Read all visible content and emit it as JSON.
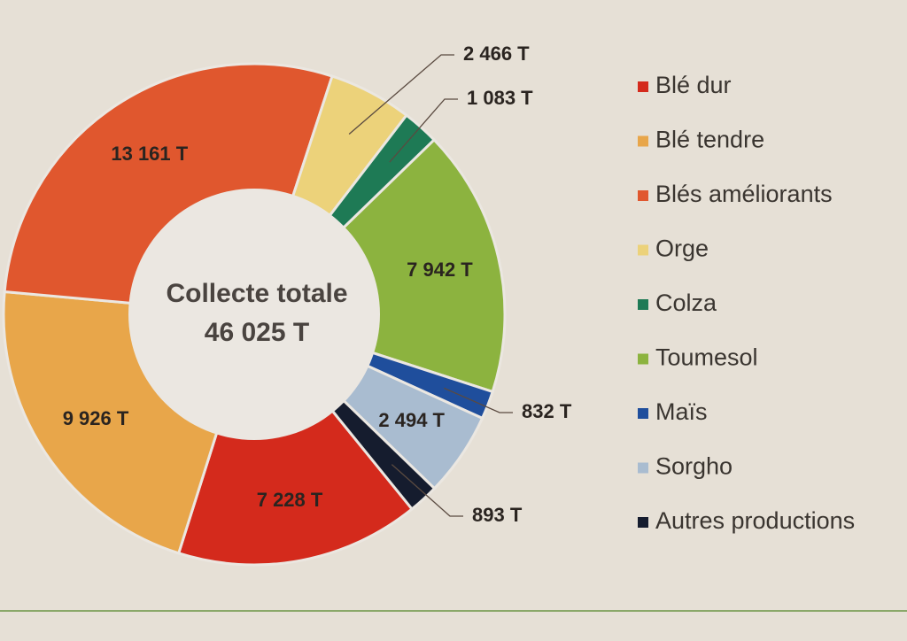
{
  "chart_data": {
    "type": "donut",
    "center_label": [
      "Collecte totale",
      "46 025 T"
    ],
    "categories": [
      "Blé dur",
      "Blé tendre",
      "Blés améliorants",
      "Orge",
      "Colza",
      "Toumesol",
      "Maïs",
      "Sorgho",
      "Autres productions"
    ],
    "values": [
      7228,
      9926,
      13161,
      2466,
      1083,
      7942,
      832,
      2494,
      893
    ],
    "value_labels": [
      "7 228 T",
      "9 926 T",
      "13 161 T",
      "2 466 T",
      "1 083 T",
      "7 942 T",
      "832 T",
      "2 494 T",
      "893 T"
    ],
    "colors": [
      "#d42a1c",
      "#e8a64a",
      "#e0572e",
      "#ecd27a",
      "#1e7a55",
      "#8cb33f",
      "#1f4e9c",
      "#a9bcd0",
      "#151c2e"
    ],
    "legend": "right"
  }
}
